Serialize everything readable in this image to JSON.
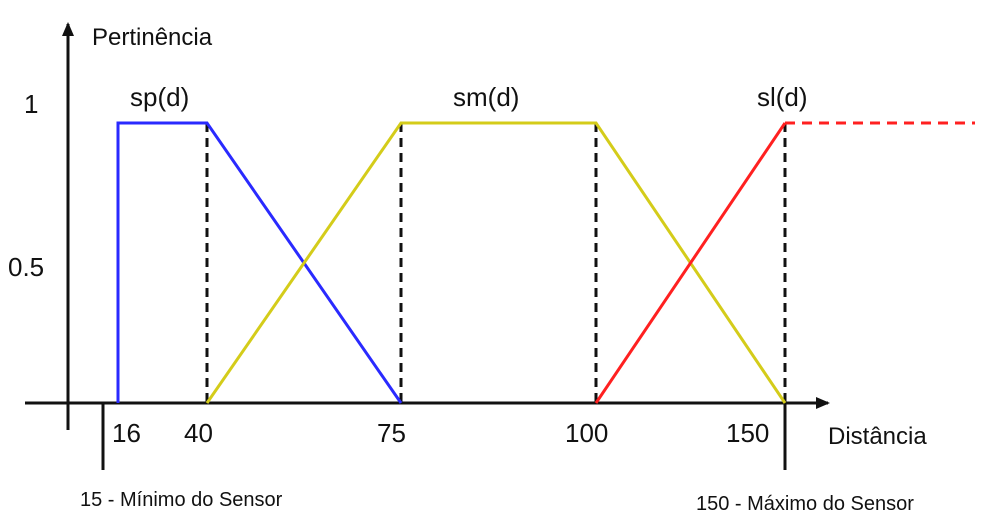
{
  "chart_data": {
    "type": "line",
    "title": "",
    "xlabel": "Distância",
    "ylabel": "Pertinência",
    "y_ticks": [
      "1",
      "0.5"
    ],
    "x_ticks": [
      16,
      40,
      75,
      100,
      150
    ],
    "x_tick_labels": [
      "16",
      "40",
      "75",
      "100",
      "150"
    ],
    "series": [
      {
        "name": "sp(d)",
        "color": "#2a2aff",
        "points": [
          [
            16,
            0
          ],
          [
            16,
            1
          ],
          [
            40,
            1
          ],
          [
            75,
            0
          ]
        ]
      },
      {
        "name": "sm(d)",
        "color": "#d4cc1a",
        "points": [
          [
            40,
            0
          ],
          [
            75,
            1
          ],
          [
            100,
            1
          ],
          [
            150,
            0
          ]
        ]
      },
      {
        "name": "sl(d)",
        "color": "#ff2020",
        "points": [
          [
            100,
            0
          ],
          [
            150,
            1
          ]
        ],
        "dashed_continuation": true
      }
    ],
    "dashed_guides_at_x": [
      40,
      75,
      100,
      150
    ],
    "annotations": {
      "sensor_min": "15 - Mínimo do Sensor",
      "sensor_max": "150 - Máximo do Sensor"
    }
  }
}
